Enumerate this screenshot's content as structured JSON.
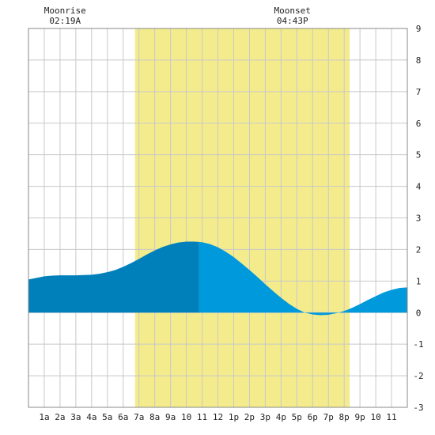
{
  "chart_data": {
    "type": "area",
    "title": "",
    "xlabel": "",
    "ylabel": "",
    "xlim": [
      0,
      24
    ],
    "ylim": [
      -3,
      9
    ],
    "grid": true,
    "x_tick_labels": [
      "1a",
      "2a",
      "3a",
      "4a",
      "5a",
      "6a",
      "7a",
      "8a",
      "9a",
      "10",
      "11",
      "12",
      "1p",
      "2p",
      "3p",
      "4p",
      "5p",
      "6p",
      "7p",
      "8p",
      "9p",
      "10",
      "11"
    ],
    "y_tick_labels": [
      "9",
      "8",
      "7",
      "6",
      "5",
      "4",
      "3",
      "2",
      "1",
      "0",
      "-1",
      "-2",
      "-3"
    ],
    "daylight": {
      "start_hour": 6.75,
      "end_hour": 20.35,
      "color": "#f4ec8c"
    },
    "current_time_hour": 10.8,
    "annotations": [
      {
        "label": "Moonrise",
        "time": "02:19A",
        "hour": 2.32
      },
      {
        "label": "Moonset",
        "time": "04:43P",
        "hour": 16.72
      }
    ],
    "series": [
      {
        "x": [
          0,
          0.5,
          1,
          1.5,
          2,
          2.5,
          3,
          3.5,
          4,
          4.5,
          5,
          5.5,
          6,
          6.5,
          7,
          7.5,
          8,
          8.5,
          9,
          9.5,
          10,
          10.5,
          11,
          11.5,
          12,
          12.5,
          13,
          13.5,
          14,
          14.5,
          15,
          15.5,
          16,
          16.5,
          17,
          17.5,
          18,
          18.5,
          19,
          19.5,
          20,
          20.5,
          21,
          21.5,
          22,
          22.5,
          23,
          23.5,
          24
        ],
        "values": [
          1.05,
          1.1,
          1.15,
          1.17,
          1.18,
          1.18,
          1.18,
          1.19,
          1.2,
          1.23,
          1.28,
          1.35,
          1.45,
          1.57,
          1.7,
          1.84,
          1.97,
          2.08,
          2.16,
          2.22,
          2.25,
          2.25,
          2.23,
          2.17,
          2.07,
          1.93,
          1.76,
          1.56,
          1.35,
          1.13,
          0.9,
          0.68,
          0.47,
          0.28,
          0.12,
          0.0,
          -0.06,
          -0.08,
          -0.07,
          -0.02,
          0.05,
          0.15,
          0.27,
          0.4,
          0.52,
          0.64,
          0.72,
          0.78,
          0.8
        ]
      }
    ]
  },
  "colors": {
    "plot_background": "#ffffff",
    "grid": "#c8c8c8",
    "water_before_now": "#0080bb",
    "water_after_now": "#0099db",
    "axis_text": "#222222"
  }
}
